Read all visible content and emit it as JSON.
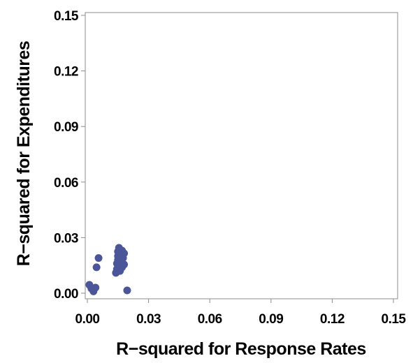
{
  "chart_data": {
    "type": "scatter",
    "title": "",
    "xlabel": "R−squared for Response Rates",
    "ylabel": "R−squared for Expenditures",
    "xlim": [
      0,
      0.15
    ],
    "ylim": [
      0,
      0.15
    ],
    "xticks": [
      0.0,
      0.03,
      0.06,
      0.09,
      0.12,
      0.15
    ],
    "yticks": [
      0.0,
      0.03,
      0.06,
      0.09,
      0.12,
      0.15
    ],
    "xtick_labels": [
      "0.00",
      "0.03",
      "0.06",
      "0.09",
      "0.12",
      "0.15"
    ],
    "ytick_labels": [
      "0.00",
      "0.03",
      "0.06",
      "0.09",
      "0.12",
      "0.15"
    ],
    "grid": false,
    "marker_color": "#4a5698",
    "series": [
      {
        "points": [
          {
            "x": 0.001,
            "y": 0.0045
          },
          {
            "x": 0.002,
            "y": 0.0025
          },
          {
            "x": 0.003,
            "y": 0.001
          },
          {
            "x": 0.004,
            "y": 0.003
          },
          {
            "x": 0.0045,
            "y": 0.014
          },
          {
            "x": 0.0055,
            "y": 0.019
          },
          {
            "x": 0.014,
            "y": 0.011
          },
          {
            "x": 0.0145,
            "y": 0.013
          },
          {
            "x": 0.0145,
            "y": 0.016
          },
          {
            "x": 0.015,
            "y": 0.018
          },
          {
            "x": 0.015,
            "y": 0.02
          },
          {
            "x": 0.015,
            "y": 0.0225
          },
          {
            "x": 0.0155,
            "y": 0.0245
          },
          {
            "x": 0.016,
            "y": 0.012
          },
          {
            "x": 0.016,
            "y": 0.015
          },
          {
            "x": 0.0165,
            "y": 0.0175
          },
          {
            "x": 0.0165,
            "y": 0.021
          },
          {
            "x": 0.017,
            "y": 0.014
          },
          {
            "x": 0.017,
            "y": 0.023
          },
          {
            "x": 0.0175,
            "y": 0.019
          },
          {
            "x": 0.018,
            "y": 0.0215
          },
          {
            "x": 0.018,
            "y": 0.0155
          },
          {
            "x": 0.0195,
            "y": 0.0015
          }
        ]
      }
    ]
  }
}
